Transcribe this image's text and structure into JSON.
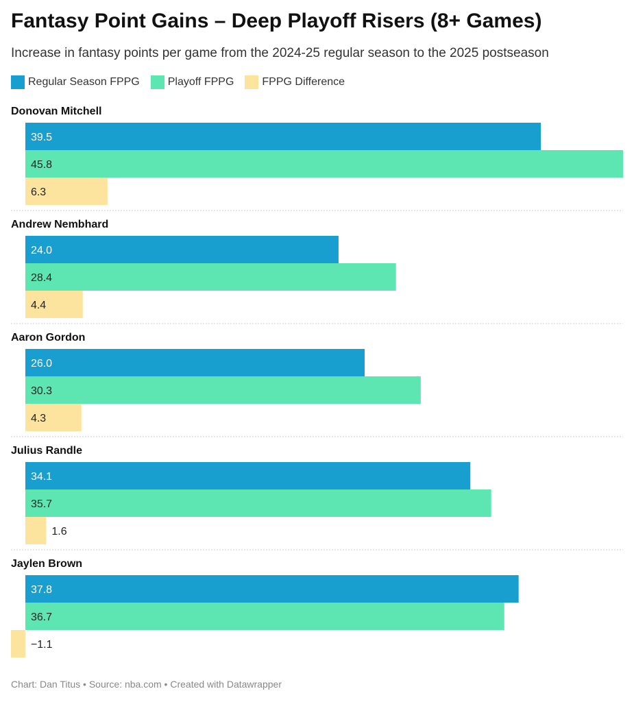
{
  "header": {
    "title": "Fantasy Point Gains – Deep Playoff Risers (8+ Games)",
    "subtitle": "Increase in fantasy points per game from the 2024-25 regular season to the 2025 postseason"
  },
  "legend": {
    "items": [
      {
        "label": "Regular Season FPPG",
        "color": "#199fcf"
      },
      {
        "label": "Playoff FPPG",
        "color": "#5de6b1"
      },
      {
        "label": "FPPG Difference",
        "color": "#fde49e"
      }
    ]
  },
  "chart_data": {
    "type": "bar",
    "orientation": "horizontal",
    "categories": [
      "Donovan Mitchell",
      "Andrew Nembhard",
      "Aaron Gordon",
      "Julius Randle",
      "Jaylen Brown"
    ],
    "series": [
      {
        "name": "Regular Season FPPG",
        "color": "#199fcf",
        "values": [
          39.5,
          24.0,
          26.0,
          34.1,
          37.8
        ],
        "labels": [
          "39.5",
          "24.0",
          "26.0",
          "34.1",
          "37.8"
        ]
      },
      {
        "name": "Playoff FPPG",
        "color": "#5de6b1",
        "values": [
          45.8,
          28.4,
          30.3,
          35.7,
          36.7
        ],
        "labels": [
          "45.8",
          "28.4",
          "30.3",
          "35.7",
          "36.7"
        ]
      },
      {
        "name": "FPPG Difference",
        "color": "#fde49e",
        "values": [
          6.3,
          4.4,
          4.3,
          1.6,
          -1.1
        ],
        "labels": [
          "6.3",
          "4.4",
          "4.3",
          "1.6",
          "−1.1"
        ]
      }
    ],
    "xlim": [
      -1.1,
      45.8
    ],
    "grid": false,
    "legend_position": "top-left"
  },
  "footer": {
    "text": "Chart: Dan Titus • Source: nba.com • Created with Datawrapper"
  }
}
